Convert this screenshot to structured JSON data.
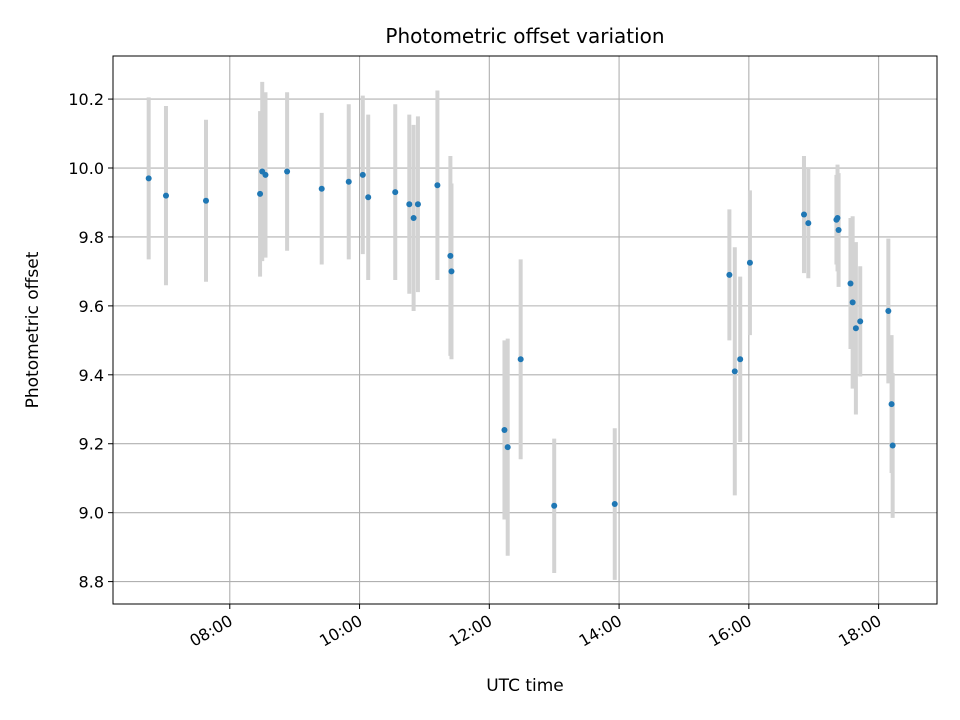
{
  "chart_data": {
    "type": "scatter",
    "title": "Photometric offset variation",
    "xlabel": "UTC time",
    "ylabel": "Photometric offset",
    "xlim": [
      "06:12",
      "18:54"
    ],
    "ylim": [
      8.735,
      10.325
    ],
    "xticks": [
      "08:00",
      "10:00",
      "12:00",
      "14:00",
      "16:00",
      "18:00"
    ],
    "yticks": [
      8.8,
      9.0,
      9.2,
      9.4,
      9.6,
      9.8,
      10.0,
      10.2
    ],
    "ytick_labels": [
      "8.8",
      "9.0",
      "9.2",
      "9.4",
      "9.6",
      "9.8",
      "10.0",
      "10.2"
    ],
    "grid": true,
    "colors": {
      "point": "#1f77b4",
      "errorbar": "#d3d3d3",
      "grid": "#b0b0b0"
    },
    "points": [
      {
        "t": "06:45",
        "y": 9.97,
        "err": 0.235
      },
      {
        "t": "07:01",
        "y": 9.92,
        "err": 0.26
      },
      {
        "t": "07:38",
        "y": 9.905,
        "err": 0.235
      },
      {
        "t": "08:28",
        "y": 9.925,
        "err": 0.24
      },
      {
        "t": "08:30",
        "y": 9.99,
        "err": 0.26
      },
      {
        "t": "08:33",
        "y": 9.98,
        "err": 0.24
      },
      {
        "t": "08:53",
        "y": 9.99,
        "err": 0.23
      },
      {
        "t": "09:25",
        "y": 9.94,
        "err": 0.22
      },
      {
        "t": "09:50",
        "y": 9.96,
        "err": 0.225
      },
      {
        "t": "10:03",
        "y": 9.98,
        "err": 0.23
      },
      {
        "t": "10:08",
        "y": 9.915,
        "err": 0.24
      },
      {
        "t": "10:33",
        "y": 9.93,
        "err": 0.255
      },
      {
        "t": "10:46",
        "y": 9.895,
        "err": 0.26
      },
      {
        "t": "10:50",
        "y": 9.855,
        "err": 0.27
      },
      {
        "t": "10:54",
        "y": 9.895,
        "err": 0.255
      },
      {
        "t": "11:12",
        "y": 9.95,
        "err": 0.275
      },
      {
        "t": "11:24",
        "y": 9.745,
        "err": 0.29
      },
      {
        "t": "11:25",
        "y": 9.7,
        "err": 0.255
      },
      {
        "t": "12:14",
        "y": 9.24,
        "err": 0.26
      },
      {
        "t": "12:17",
        "y": 9.19,
        "err": 0.315
      },
      {
        "t": "12:29",
        "y": 9.445,
        "err": 0.29
      },
      {
        "t": "13:00",
        "y": 9.02,
        "err": 0.195
      },
      {
        "t": "13:56",
        "y": 9.025,
        "err": 0.22
      },
      {
        "t": "15:42",
        "y": 9.69,
        "err": 0.19
      },
      {
        "t": "15:47",
        "y": 9.41,
        "err": 0.36
      },
      {
        "t": "15:52",
        "y": 9.445,
        "err": 0.24
      },
      {
        "t": "16:01",
        "y": 9.725,
        "err": 0.21
      },
      {
        "t": "16:51",
        "y": 9.865,
        "err": 0.17
      },
      {
        "t": "16:55",
        "y": 9.84,
        "err": 0.16
      },
      {
        "t": "17:21",
        "y": 9.85,
        "err": 0.13
      },
      {
        "t": "17:22",
        "y": 9.855,
        "err": 0.155
      },
      {
        "t": "17:23",
        "y": 9.82,
        "err": 0.165
      },
      {
        "t": "17:34",
        "y": 9.665,
        "err": 0.19
      },
      {
        "t": "17:36",
        "y": 9.61,
        "err": 0.25
      },
      {
        "t": "17:39",
        "y": 9.535,
        "err": 0.25
      },
      {
        "t": "17:43",
        "y": 9.555,
        "err": 0.16
      },
      {
        "t": "18:09",
        "y": 9.585,
        "err": 0.21
      },
      {
        "t": "18:12",
        "y": 9.315,
        "err": 0.2
      },
      {
        "t": "18:13",
        "y": 9.195,
        "err": 0.21
      }
    ]
  }
}
